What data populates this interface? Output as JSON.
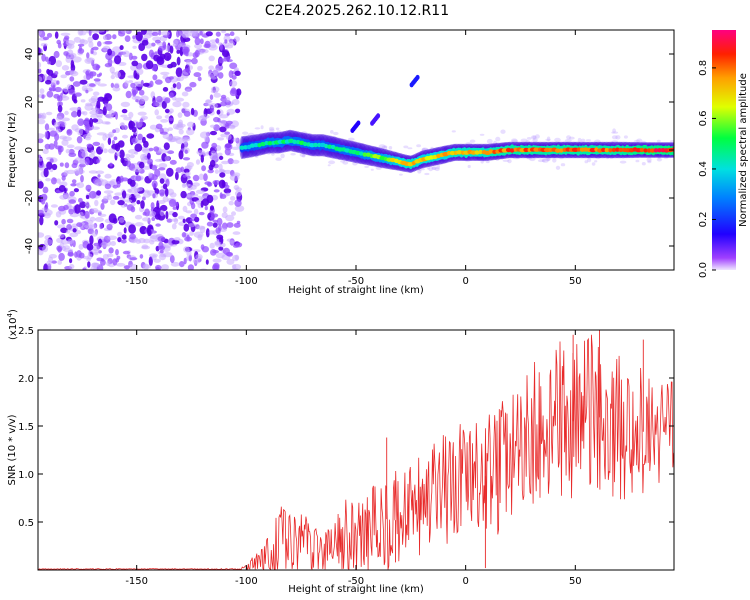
{
  "figure_title": "C2E4.2025.262.10.12.R11",
  "chart_data": [
    {
      "type": "heatmap",
      "title": "C2E4.2025.262.10.12.R11",
      "xlabel": "Height of straight line (km)",
      "ylabel": "Frequency (Hz)",
      "xlim": [
        -195,
        95
      ],
      "ylim": [
        -50,
        50
      ],
      "xticks": [
        -150,
        -100,
        -50,
        0,
        50
      ],
      "yticks": [
        -40,
        -20,
        0,
        20,
        40
      ],
      "colorbar": {
        "label": "Normalized spectral amplitude",
        "range": [
          0.0,
          0.95
        ],
        "ticks": [
          0.0,
          0.2,
          0.4,
          0.6,
          0.8
        ],
        "colormap": [
          "#f0e6ff",
          "#a040ff",
          "#2000ff",
          "#0080ff",
          "#00e0e0",
          "#00ff40",
          "#e0ff00",
          "#ffa000",
          "#ff2000",
          "#ff0080"
        ]
      },
      "noise_region_x": [
        -195,
        -103
      ],
      "ridge": {
        "x": [
          -102,
          -95,
          -90,
          -85,
          -80,
          -75,
          -70,
          -65,
          -60,
          -55,
          -50,
          -45,
          -40,
          -35,
          -30,
          -25,
          -20,
          -15,
          -10,
          -5,
          0,
          10,
          20,
          30,
          40,
          50,
          60,
          70,
          80,
          90,
          95
        ],
        "freq_hz": [
          1,
          2,
          3,
          3,
          4,
          3,
          2,
          2,
          1,
          0,
          -1,
          -2,
          -3,
          -4,
          -5,
          -6,
          -4,
          -3,
          -2,
          -1,
          -1,
          -1,
          0,
          0,
          0,
          0,
          0,
          0,
          0,
          0,
          0
        ],
        "amplitude": [
          0.4,
          0.45,
          0.5,
          0.5,
          0.5,
          0.5,
          0.45,
          0.45,
          0.45,
          0.5,
          0.5,
          0.55,
          0.6,
          0.65,
          0.75,
          0.8,
          0.75,
          0.75,
          0.75,
          0.8,
          0.8,
          0.8,
          0.85,
          0.85,
          0.85,
          0.85,
          0.85,
          0.85,
          0.9,
          0.9,
          0.9
        ]
      },
      "isolated_features": [
        {
          "x": -23,
          "freq_hz": 29,
          "amplitude": 0.3
        },
        {
          "x": -50,
          "freq_hz": 10,
          "amplitude": 0.25
        },
        {
          "x": -41,
          "freq_hz": 13,
          "amplitude": 0.2
        }
      ]
    },
    {
      "type": "line",
      "title": "",
      "xlabel": "Height of straight line (km)",
      "ylabel": "SNR (10 * v/v)",
      "y_multiplier": "(x10",
      "y_multiplier_exp": "4",
      "y_multiplier_close": ")",
      "xlim": [
        -195,
        95
      ],
      "ylim": [
        0,
        2.5
      ],
      "xticks": [
        -150,
        -100,
        -50,
        0,
        50
      ],
      "yticks": [
        0.5,
        1.0,
        1.5,
        2.0,
        2.5
      ],
      "color": "#e82a2a",
      "x": [
        -195,
        -103,
        -100,
        -95,
        -90,
        -85,
        -80,
        -75,
        -70,
        -65,
        -60,
        -55,
        -50,
        -45,
        -40,
        -35,
        -30,
        -25,
        -20,
        -15,
        -10,
        -5,
        0,
        5,
        10,
        15,
        20,
        25,
        30,
        35,
        40,
        45,
        50,
        55,
        60,
        65,
        70,
        75,
        80,
        85,
        90,
        95
      ],
      "values": [
        0.01,
        0.01,
        0.03,
        0.08,
        0.18,
        0.28,
        0.32,
        0.3,
        0.25,
        0.22,
        0.25,
        0.3,
        0.3,
        0.35,
        0.45,
        0.55,
        0.5,
        0.55,
        0.65,
        0.7,
        0.8,
        0.85,
        0.95,
        0.9,
        1.0,
        1.05,
        1.15,
        1.25,
        1.4,
        1.45,
        1.5,
        1.55,
        1.55,
        1.6,
        1.6,
        1.55,
        1.5,
        1.45,
        1.45,
        1.4,
        1.4,
        1.4
      ],
      "amplitude": [
        0.004,
        0.004,
        0.03,
        0.1,
        0.25,
        0.35,
        0.35,
        0.3,
        0.25,
        0.25,
        0.3,
        0.4,
        0.35,
        0.4,
        0.5,
        0.5,
        0.45,
        0.5,
        0.55,
        0.55,
        0.6,
        0.6,
        0.55,
        0.6,
        0.6,
        0.65,
        0.6,
        0.65,
        0.7,
        0.75,
        0.75,
        0.8,
        0.8,
        0.8,
        0.75,
        0.7,
        0.7,
        0.65,
        0.6,
        0.55,
        0.55,
        0.55
      ],
      "spikes": [
        {
          "x": -36,
          "value": 1.38
        },
        {
          "x": -32,
          "value": 0.08
        },
        {
          "x": 9,
          "value": 0.02
        },
        {
          "x": 49,
          "value": 2.45
        },
        {
          "x": 61,
          "value": 2.5
        },
        {
          "x": 81,
          "value": 2.4
        }
      ]
    }
  ]
}
